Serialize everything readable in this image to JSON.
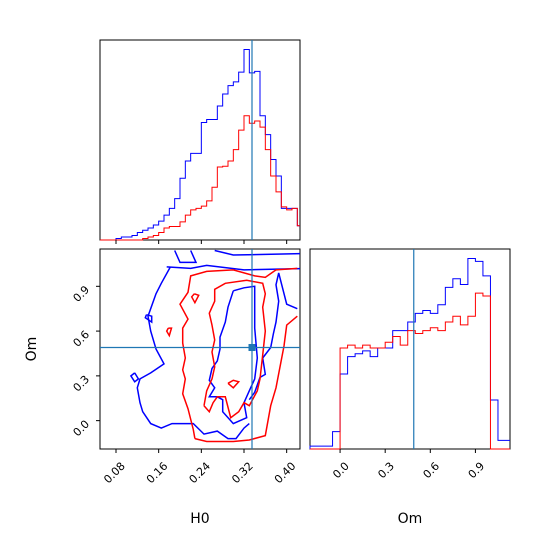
{
  "chart_data": {
    "type": "corner",
    "parameters": [
      "H0",
      "Om"
    ],
    "truth": {
      "H0": 0.335,
      "Om": 0.49
    },
    "colors": {
      "series_a": "#0000ff",
      "series_b": "#ff0000",
      "truth": "#1f77b4"
    },
    "panels": [
      {
        "name": "H0-marginal",
        "type": "histogram",
        "xlim": [
          0.05,
          0.425
        ],
        "x_ticks": [
          0.08,
          0.16,
          0.24,
          0.32,
          0.4
        ],
        "y_ticks_shown": false,
        "bin_edges": [
          0.05,
          0.06,
          0.07,
          0.08,
          0.09,
          0.1,
          0.11,
          0.12,
          0.13,
          0.14,
          0.15,
          0.16,
          0.17,
          0.18,
          0.19,
          0.2,
          0.21,
          0.22,
          0.23,
          0.24,
          0.25,
          0.26,
          0.27,
          0.28,
          0.29,
          0.3,
          0.31,
          0.32,
          0.33,
          0.34,
          0.35,
          0.36,
          0.37,
          0.38,
          0.39,
          0.4,
          0.41,
          0.42,
          0.425
        ],
        "series": [
          {
            "color_key": "series_a",
            "values": [
              0,
              0,
              0,
              0.2,
              0.4,
              0.4,
              0.6,
              1.0,
              1.3,
              1.6,
              2.0,
              2.5,
              3.3,
              4.2,
              5.5,
              8.2,
              10.5,
              11.5,
              11.5,
              15.6,
              16.0,
              16.0,
              17.8,
              19.4,
              20.5,
              21.0,
              22.3,
              25.3,
              22.2,
              22.4,
              16.5,
              14.0,
              10.7,
              8.5,
              4.2,
              4.2,
              4.2,
              1.9
            ]
          },
          {
            "color_key": "series_b",
            "values": [
              0,
              0,
              0,
              0,
              0,
              0,
              0,
              0,
              0.2,
              0.4,
              0.6,
              1.0,
              1.6,
              1.8,
              1.8,
              2.4,
              3.3,
              4.0,
              4.2,
              4.5,
              5.2,
              7.0,
              9.7,
              9.8,
              10.5,
              12.0,
              14.6,
              16.5,
              15.5,
              15.8,
              15.0,
              12.0,
              8.5,
              6.4,
              4.4,
              4.0,
              4.2,
              1.9
            ]
          }
        ]
      },
      {
        "name": "Om-marginal",
        "type": "histogram",
        "xlim": [
          -0.2,
          1.13
        ],
        "x_ticks": [
          0.0,
          0.3,
          0.6,
          0.9
        ],
        "y_ticks_shown": false,
        "bin_edges": [
          -0.2,
          -0.1,
          -0.05,
          0.0,
          0.05,
          0.1,
          0.15,
          0.2,
          0.25,
          0.3,
          0.35,
          0.4,
          0.45,
          0.5,
          0.55,
          0.6,
          0.65,
          0.7,
          0.75,
          0.8,
          0.85,
          0.9,
          0.95,
          1.0,
          1.05,
          1.13
        ],
        "series": [
          {
            "color_key": "series_a",
            "values": [
              0.1,
              0.1,
              0.6,
              2.6,
              3.2,
              3.3,
              3.4,
              3.2,
              3.5,
              3.5,
              4.1,
              4.1,
              4.4,
              4.7,
              4.8,
              4.7,
              5.0,
              5.6,
              5.9,
              5.7,
              6.6,
              6.5,
              6.0,
              1.7,
              0.3
            ]
          },
          {
            "color_key": "series_b",
            "values": [
              0,
              0,
              0,
              3.5,
              3.6,
              3.5,
              3.6,
              3.5,
              3.5,
              3.7,
              3.9,
              3.6,
              4.1,
              4.0,
              4.1,
              4.2,
              4.1,
              4.4,
              4.6,
              4.3,
              4.6,
              5.4,
              5.3,
              0,
              0
            ]
          }
        ]
      },
      {
        "name": "H0-Om-joint",
        "type": "contour",
        "xlim": [
          0.05,
          0.425
        ],
        "ylim": [
          -0.19,
          1.15
        ],
        "x_ticks": [
          0.08,
          0.16,
          0.24,
          0.32,
          0.4
        ],
        "y_ticks": [
          0.0,
          0.3,
          0.6,
          0.9
        ],
        "series": [
          {
            "color_key": "series_a",
            "contours": [
              [
                [
                  0.19,
                  1.14
                ],
                [
                  0.2,
                  1.06
                ],
                [
                  0.23,
                  1.06
                ],
                [
                  0.22,
                  1.14
                ]
              ],
              [
                [
                  0.265,
                  1.14
                ],
                [
                  0.3,
                  1.11
                ],
                [
                  0.44,
                  1.12
                ]
              ],
              [
                [
                  0.182,
                  1.03
                ],
                [
                  0.165,
                  0.92
                ],
                [
                  0.155,
                  0.85
                ],
                [
                  0.14,
                  0.7
                ],
                [
                  0.145,
                  0.6
                ],
                [
                  0.155,
                  0.48
                ],
                [
                  0.17,
                  0.38
                ],
                [
                  0.145,
                  0.32
                ],
                [
                  0.125,
                  0.28
                ],
                [
                  0.12,
                  0.22
                ],
                [
                  0.125,
                  0.12
                ],
                [
                  0.13,
                  0.06
                ],
                [
                  0.145,
                  -0.02
                ],
                [
                  0.165,
                  -0.05
                ],
                [
                  0.185,
                  -0.02
                ],
                [
                  0.225,
                  -0.02
                ],
                [
                  0.245,
                  -0.09
                ],
                [
                  0.27,
                  -0.07
                ],
                [
                  0.29,
                  -0.12
                ],
                [
                  0.305,
                  -0.12
                ],
                [
                  0.32,
                  -0.05
                ],
                [
                  0.33,
                  -0.02
                ]
              ],
              [
                [
                  0.175,
                  1.03
                ],
                [
                  0.22,
                  1.02
                ],
                [
                  0.25,
                  1.04
                ],
                [
                  0.32,
                  1.01
                ],
                [
                  0.44,
                  1.02
                ]
              ],
              [
                [
                  0.137,
                  0.71
                ],
                [
                  0.147,
                  0.7
                ],
                [
                  0.147,
                  0.66
                ],
                [
                  0.135,
                  0.69
                ],
                [
                  0.137,
                  0.71
                ]
              ],
              [
                [
                  0.115,
                  0.32
                ],
                [
                  0.122,
                  0.28
                ],
                [
                  0.115,
                  0.26
                ],
                [
                  0.108,
                  0.3
                ],
                [
                  0.115,
                  0.32
                ]
              ],
              [
                [
                  0.3,
                  0.87
                ],
                [
                  0.32,
                  0.89
                ],
                [
                  0.34,
                  0.9
                ],
                [
                  0.34,
                  0.82
                ],
                [
                  0.34,
                  0.62
                ],
                [
                  0.345,
                  0.42
                ],
                [
                  0.34,
                  0.28
                ],
                [
                  0.33,
                  0.2
                ],
                [
                  0.32,
                  0.12
                ],
                [
                  0.325,
                  0.02
                ],
                [
                  0.3,
                  -0.02
                ],
                [
                  0.28,
                  0.06
                ],
                [
                  0.28,
                  0.14
                ],
                [
                  0.27,
                  0.16
                ],
                [
                  0.255,
                  0.16
                ],
                [
                  0.265,
                  0.22
                ],
                [
                  0.255,
                  0.27
                ],
                [
                  0.26,
                  0.35
                ],
                [
                  0.27,
                  0.4
                ],
                [
                  0.275,
                  0.48
                ],
                [
                  0.275,
                  0.56
                ],
                [
                  0.285,
                  0.66
                ],
                [
                  0.29,
                  0.76
                ],
                [
                  0.3,
                  0.87
                ]
              ],
              [
                [
                  0.33,
                  0.14
                ],
                [
                  0.34,
                  0.19
                ],
                [
                  0.35,
                  0.29
                ],
                [
                  0.36,
                  0.31
                ],
                [
                  0.355,
                  0.42
                ],
                [
                  0.37,
                  0.49
                ],
                [
                  0.375,
                  0.58
                ],
                [
                  0.38,
                  0.66
                ],
                [
                  0.385,
                  0.8
                ],
                [
                  0.38,
                  0.91
                ],
                [
                  0.385,
                  0.99
                ],
                [
                  0.4,
                  0.78
                ],
                [
                  0.42,
                  0.75
                ]
              ]
            ]
          },
          {
            "color_key": "series_b",
            "contours": [
              [
                [
                  0.228,
                  -0.12
                ],
                [
                  0.25,
                  -0.14
                ],
                [
                  0.3,
                  -0.14
                ],
                [
                  0.33,
                  -0.13
                ],
                [
                  0.36,
                  -0.1
                ],
                [
                  0.37,
                  0.1
                ],
                [
                  0.38,
                  0.22
                ],
                [
                  0.395,
                  0.5
                ],
                [
                  0.4,
                  0.64
                ],
                [
                  0.42,
                  0.7
                ]
              ],
              [
                [
                  0.228,
                  -0.12
                ],
                [
                  0.225,
                  -0.06
                ],
                [
                  0.215,
                  0.08
                ],
                [
                  0.205,
                  0.18
                ],
                [
                  0.21,
                  0.28
                ],
                [
                  0.205,
                  0.34
                ],
                [
                  0.21,
                  0.42
                ],
                [
                  0.205,
                  0.52
                ],
                [
                  0.205,
                  0.62
                ],
                [
                  0.215,
                  0.68
                ],
                [
                  0.2,
                  0.78
                ],
                [
                  0.215,
                  0.86
                ],
                [
                  0.22,
                  0.97
                ],
                [
                  0.25,
                  1.0
                ],
                [
                  0.3,
                  1.01
                ],
                [
                  0.34,
                  0.97
                ],
                [
                  0.36,
                  0.96
                ],
                [
                  0.38,
                  1.01
                ],
                [
                  0.42,
                  1.02
                ]
              ],
              [
                [
                  0.245,
                  0.1
                ],
                [
                  0.25,
                  0.2
                ],
                [
                  0.26,
                  0.28
                ],
                [
                  0.265,
                  0.36
                ],
                [
                  0.26,
                  0.46
                ],
                [
                  0.265,
                  0.54
                ],
                [
                  0.26,
                  0.64
                ],
                [
                  0.255,
                  0.72
                ],
                [
                  0.265,
                  0.8
                ],
                [
                  0.265,
                  0.88
                ],
                [
                  0.285,
                  0.92
                ],
                [
                  0.325,
                  0.94
                ],
                [
                  0.355,
                  0.92
                ],
                [
                  0.36,
                  0.85
                ],
                [
                  0.355,
                  0.76
                ],
                [
                  0.36,
                  0.6
                ],
                [
                  0.355,
                  0.44
                ],
                [
                  0.35,
                  0.28
                ],
                [
                  0.345,
                  0.2
                ],
                [
                  0.33,
                  0.1
                ],
                [
                  0.32,
                  0.12
                ],
                [
                  0.31,
                  0.06
                ],
                [
                  0.295,
                  0.02
                ],
                [
                  0.285,
                  0.16
                ],
                [
                  0.27,
                  0.16
                ],
                [
                  0.262,
                  0.12
                ],
                [
                  0.255,
                  0.06
                ],
                [
                  0.245,
                  0.1
                ]
              ],
              [
                [
                  0.227,
                  0.85
                ],
                [
                  0.235,
                  0.84
                ],
                [
                  0.228,
                  0.79
                ],
                [
                  0.222,
                  0.83
                ],
                [
                  0.227,
                  0.85
                ]
              ],
              [
                [
                  0.178,
                  0.62
                ],
                [
                  0.184,
                  0.62
                ],
                [
                  0.18,
                  0.57
                ],
                [
                  0.175,
                  0.6
                ],
                [
                  0.178,
                  0.62
                ]
              ],
              [
                [
                  0.29,
                  0.25
                ],
                [
                  0.3,
                  0.27
                ],
                [
                  0.31,
                  0.26
                ],
                [
                  0.3,
                  0.22
                ],
                [
                  0.29,
                  0.25
                ]
              ]
            ]
          }
        ]
      }
    ],
    "xlabel_H0": "H0",
    "xlabel_Om": "Om",
    "ylabel_Om": "Om"
  }
}
